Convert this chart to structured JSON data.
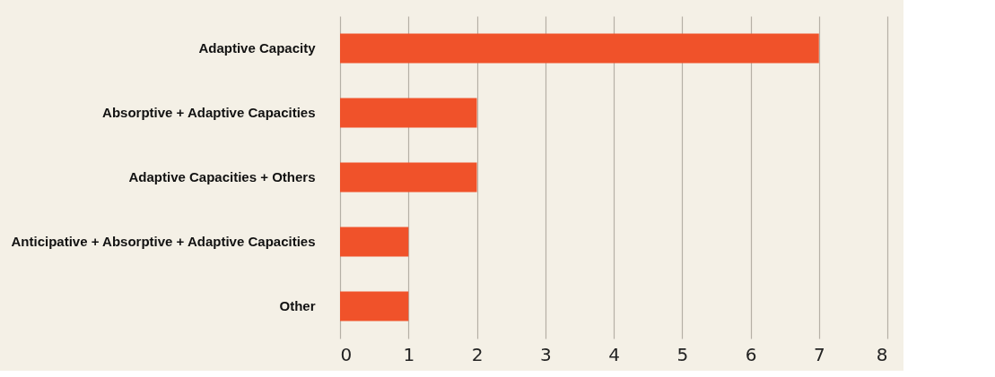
{
  "chart_data": {
    "type": "bar",
    "orientation": "horizontal",
    "categories": [
      "Adaptive Capacity",
      "Absorptive + Adaptive Capacities",
      "Adaptive Capacities + Others",
      "Anticipative + Absorptive + Adaptive Capacities",
      "Other"
    ],
    "values": [
      7,
      2,
      2,
      1,
      1
    ],
    "color": "#f0522a",
    "xlim": [
      0,
      8
    ],
    "xticks": [
      0,
      1,
      2,
      3,
      4,
      5,
      6,
      7,
      8
    ],
    "grid": "x"
  }
}
